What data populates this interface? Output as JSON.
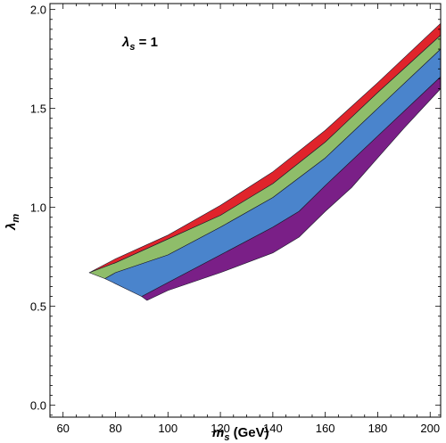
{
  "chart_data": {
    "type": "area",
    "title": "",
    "annotation": {
      "lambda_label": "λ",
      "sub": "s",
      "value_text": " = 1"
    },
    "xlabel": {
      "main": "m",
      "sub": "s",
      "unit": " (GeV)"
    },
    "ylabel": {
      "main": "λ",
      "sub": "m"
    },
    "xlim": [
      55,
      204
    ],
    "ylim": [
      -0.06,
      2.03
    ],
    "x_ticks": [
      60,
      80,
      100,
      120,
      140,
      160,
      180,
      200
    ],
    "x_tick_labels": [
      "60",
      "80",
      "100",
      "120",
      "140",
      "160",
      "180",
      "200"
    ],
    "y_ticks": [
      0.0,
      0.5,
      1.0,
      1.5,
      2.0
    ],
    "y_tick_labels": [
      "0.0",
      "0.5",
      "1.0",
      "1.5",
      "2.0"
    ],
    "grid": false,
    "series": [
      {
        "color": "#e0242b",
        "points": [
          [
            70,
            0.67
          ],
          [
            80,
            0.74
          ],
          [
            100,
            0.86
          ],
          [
            120,
            1.01
          ],
          [
            140,
            1.18
          ],
          [
            160,
            1.39
          ],
          [
            180,
            1.63
          ],
          [
            204,
            1.93
          ],
          [
            204,
            1.87
          ],
          [
            180,
            1.58
          ],
          [
            160,
            1.33
          ],
          [
            140,
            1.12
          ],
          [
            120,
            0.96
          ],
          [
            100,
            0.84
          ],
          [
            80,
            0.72
          ],
          [
            70,
            0.67
          ]
        ]
      },
      {
        "color": "#8fbd6a",
        "points": [
          [
            70,
            0.67
          ],
          [
            80,
            0.72
          ],
          [
            100,
            0.84
          ],
          [
            120,
            0.96
          ],
          [
            140,
            1.12
          ],
          [
            160,
            1.33
          ],
          [
            180,
            1.58
          ],
          [
            204,
            1.87
          ],
          [
            204,
            1.8
          ],
          [
            180,
            1.5
          ],
          [
            160,
            1.25
          ],
          [
            140,
            1.05
          ],
          [
            120,
            0.9
          ],
          [
            100,
            0.76
          ],
          [
            80,
            0.67
          ],
          [
            76,
            0.64
          ],
          [
            70,
            0.67
          ]
        ]
      },
      {
        "color": "#4a84cc",
        "points": [
          [
            76,
            0.64
          ],
          [
            80,
            0.67
          ],
          [
            100,
            0.76
          ],
          [
            120,
            0.9
          ],
          [
            140,
            1.05
          ],
          [
            160,
            1.25
          ],
          [
            180,
            1.5
          ],
          [
            204,
            1.8
          ],
          [
            204,
            1.66
          ],
          [
            180,
            1.36
          ],
          [
            160,
            1.11
          ],
          [
            150,
            0.98
          ],
          [
            140,
            0.9
          ],
          [
            120,
            0.76
          ],
          [
            100,
            0.62
          ],
          [
            90,
            0.55
          ],
          [
            76,
            0.64
          ]
        ]
      },
      {
        "color": "#7a1f87",
        "points": [
          [
            90,
            0.55
          ],
          [
            100,
            0.62
          ],
          [
            120,
            0.76
          ],
          [
            140,
            0.9
          ],
          [
            150,
            0.98
          ],
          [
            160,
            1.11
          ],
          [
            180,
            1.36
          ],
          [
            204,
            1.66
          ],
          [
            204,
            1.6
          ],
          [
            190,
            1.4
          ],
          [
            180,
            1.25
          ],
          [
            170,
            1.1
          ],
          [
            160,
            0.98
          ],
          [
            150,
            0.85
          ],
          [
            140,
            0.77
          ],
          [
            120,
            0.67
          ],
          [
            100,
            0.58
          ],
          [
            92,
            0.53
          ],
          [
            90,
            0.55
          ]
        ]
      }
    ]
  }
}
